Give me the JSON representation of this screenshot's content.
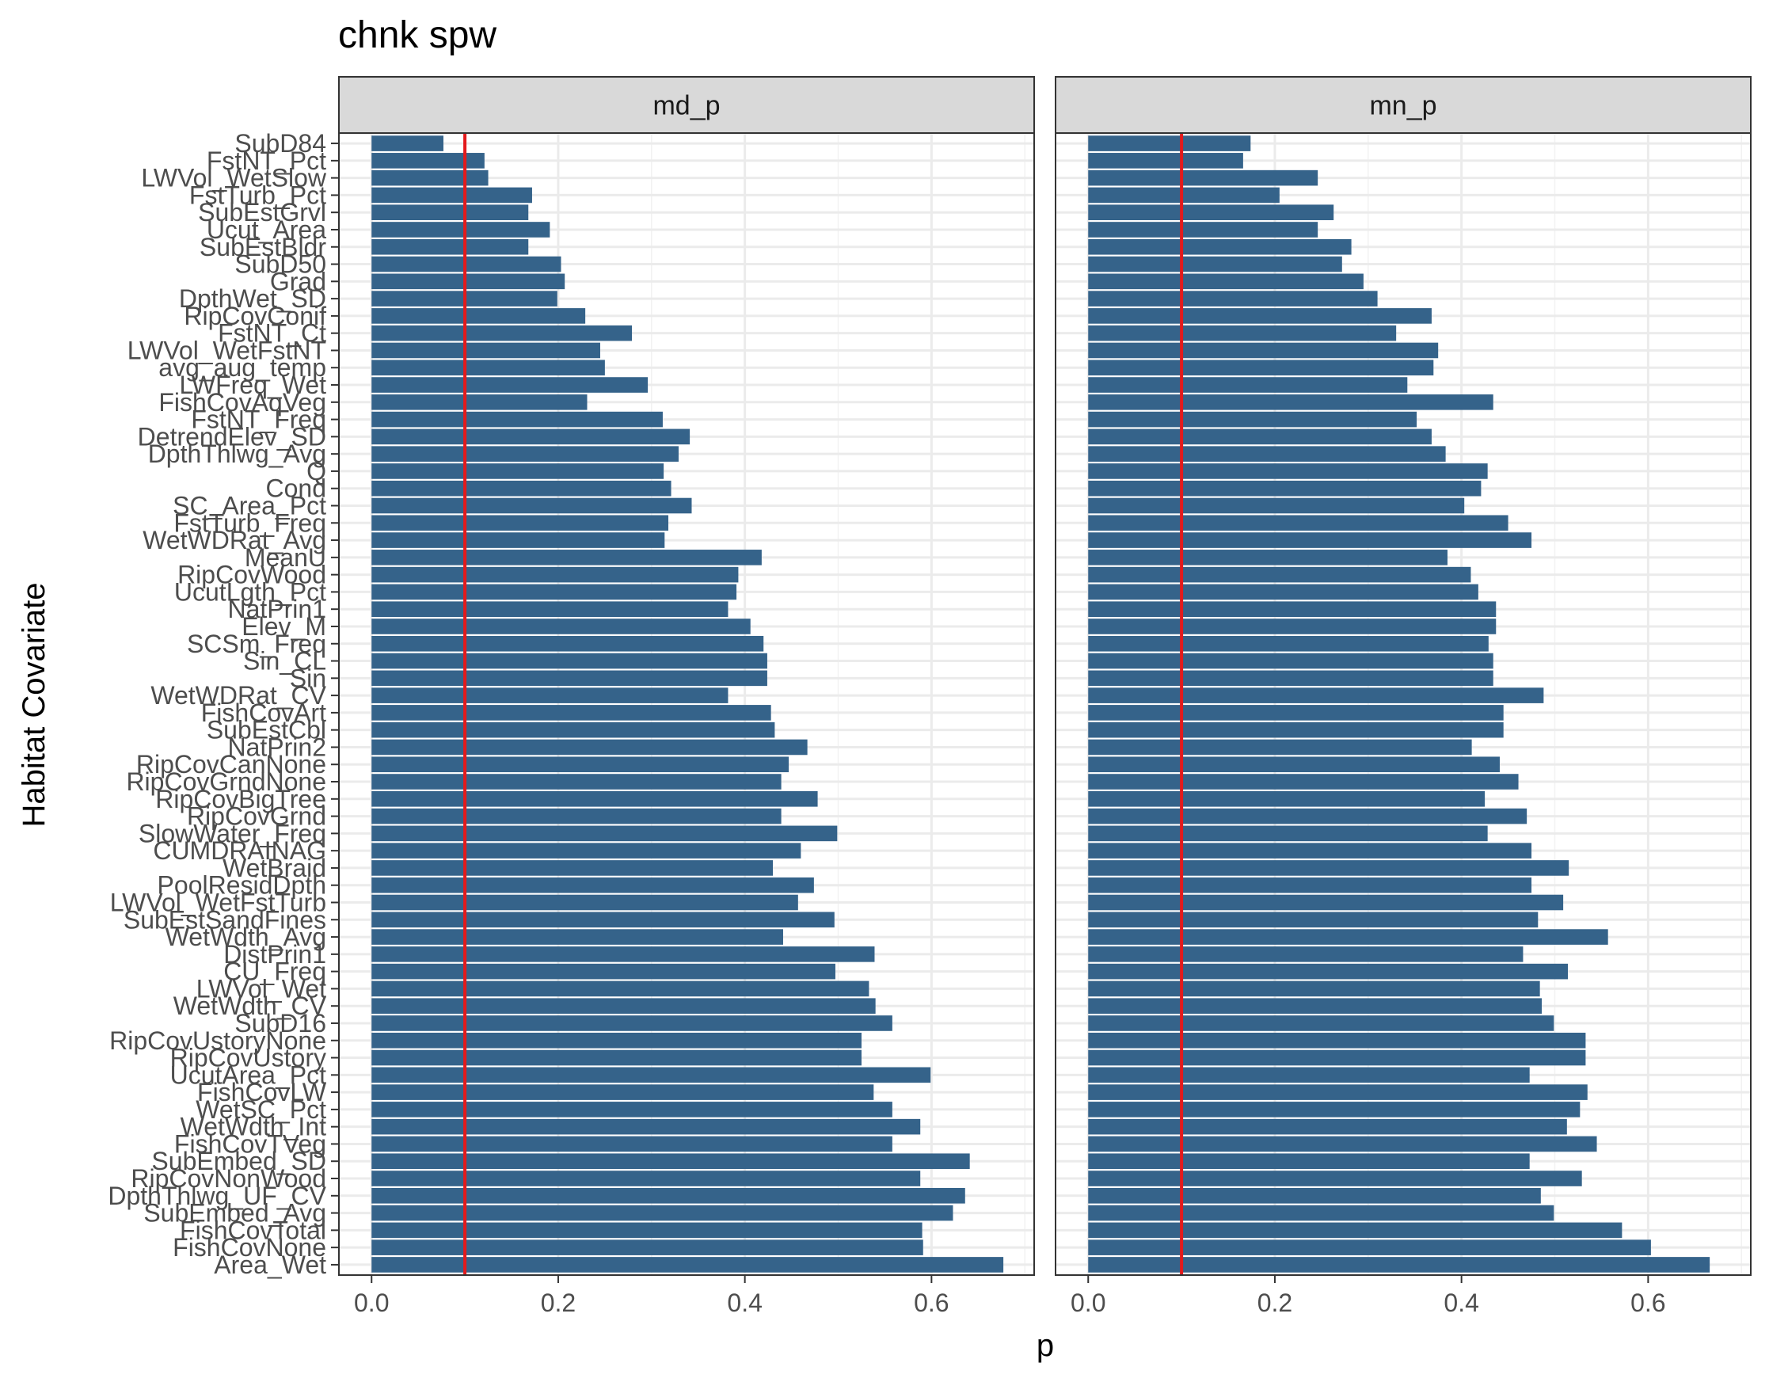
{
  "chart_data": {
    "type": "bar",
    "orientation": "horizontal",
    "title": "chnk spw",
    "xlabel": "p",
    "ylabel": "Habitat Covariate",
    "xlim": [
      -0.035,
      0.71
    ],
    "x_ticks": [
      0.0,
      0.2,
      0.4,
      0.6
    ],
    "x_tick_labels": [
      "0.0",
      "0.2",
      "0.4",
      "0.6"
    ],
    "grid": true,
    "bar_color": "#35638A",
    "reference_line": {
      "value": 0.1,
      "color": "#E31A1C"
    },
    "categories": [
      "SubD84",
      "FstNT_Pct",
      "LWVol_WetSlow",
      "FstTurb_Pct",
      "SubEstGrvl",
      "Ucut_Area",
      "SubEstBldr",
      "SubD50",
      "Grad",
      "DpthWet_SD",
      "RipCovConif",
      "FstNT_Ct",
      "LWVol_WetFstNT",
      "avg_aug_temp",
      "LWFreq_Wet",
      "FishCovAqVeg",
      "FstNT_Freq",
      "DetrendElev_SD",
      "DpthThlwg_Avg",
      "Q",
      "Cond",
      "SC_Area_Pct",
      "FstTurb_Freq",
      "WetWDRat_Avg",
      "MeanU",
      "RipCovWood",
      "UcutLgth_Pct",
      "NatPrin1",
      "Elev_M",
      "SCSm_Freq",
      "Sin_CL",
      "Sin",
      "WetWDRat_CV",
      "FishCovArt",
      "SubEstCbl",
      "NatPrin2",
      "RipCovCanNone",
      "RipCovGrndNone",
      "RipCovBigTree",
      "RipCovGrnd",
      "SlowWater_Freq",
      "CUMDRAINAG",
      "WetBraid",
      "PoolResidDpth",
      "LWVol_WetFstTurb",
      "SubEstSandFines",
      "WetWdth_Avg",
      "DistPrin1",
      "CU_Freq",
      "LWVol_Wet",
      "WetWdth_CV",
      "SubD16",
      "RipCovUstoryNone",
      "RipCovUstory",
      "UcutArea_Pct",
      "FishCovLW",
      "WetSC_Pct",
      "WetWdth_Int",
      "FishCovTVeg",
      "SubEmbed_SD",
      "RipCovNonWood",
      "DpthThlwg_UF_CV",
      "SubEmbed_Avg",
      "FishCovTotal",
      "FishCovNone",
      "Area_Wet"
    ],
    "series": [
      {
        "name": "md_p",
        "values": [
          0.077,
          0.121,
          0.125,
          0.172,
          0.168,
          0.191,
          0.168,
          0.203,
          0.207,
          0.199,
          0.229,
          0.279,
          0.245,
          0.25,
          0.296,
          0.231,
          0.312,
          0.341,
          0.329,
          0.313,
          0.321,
          0.343,
          0.318,
          0.314,
          0.418,
          0.393,
          0.391,
          0.382,
          0.406,
          0.42,
          0.424,
          0.424,
          0.382,
          0.428,
          0.432,
          0.467,
          0.447,
          0.439,
          0.478,
          0.439,
          0.499,
          0.46,
          0.43,
          0.474,
          0.457,
          0.496,
          0.441,
          0.539,
          0.497,
          0.533,
          0.54,
          0.558,
          0.525,
          0.525,
          0.599,
          0.538,
          0.558,
          0.588,
          0.558,
          0.641,
          0.588,
          0.636,
          0.623,
          0.59,
          0.591,
          0.677
        ]
      },
      {
        "name": "mn_p",
        "values": [
          0.174,
          0.166,
          0.246,
          0.205,
          0.263,
          0.246,
          0.282,
          0.272,
          0.295,
          0.31,
          0.368,
          0.33,
          0.375,
          0.37,
          0.342,
          0.434,
          0.352,
          0.368,
          0.383,
          0.428,
          0.421,
          0.403,
          0.45,
          0.475,
          0.385,
          0.41,
          0.418,
          0.437,
          0.437,
          0.429,
          0.434,
          0.434,
          0.488,
          0.445,
          0.445,
          0.411,
          0.441,
          0.461,
          0.425,
          0.47,
          0.428,
          0.475,
          0.515,
          0.475,
          0.509,
          0.482,
          0.557,
          0.466,
          0.514,
          0.484,
          0.486,
          0.499,
          0.533,
          0.533,
          0.473,
          0.535,
          0.527,
          0.513,
          0.545,
          0.473,
          0.529,
          0.485,
          0.499,
          0.572,
          0.603,
          0.666
        ]
      }
    ]
  }
}
